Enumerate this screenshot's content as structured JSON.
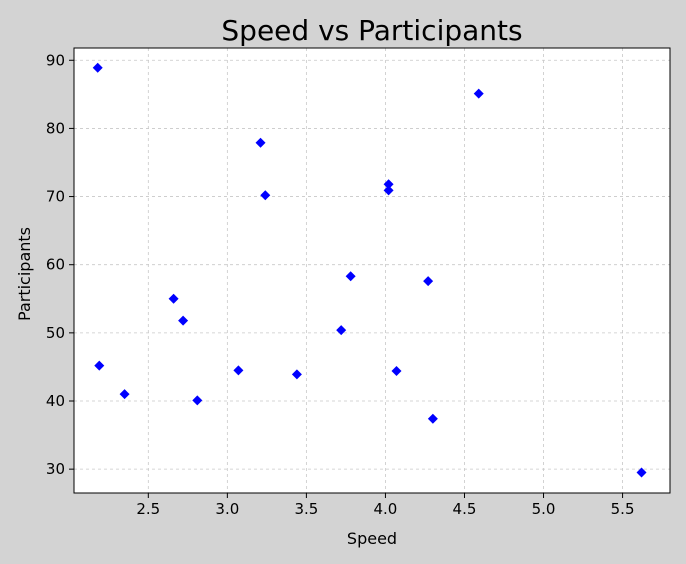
{
  "chart_data": {
    "type": "scatter",
    "title": "Speed vs Participants",
    "xlabel": "Speed",
    "ylabel": "Participants",
    "xlim": [
      2.03,
      5.8
    ],
    "ylim": [
      26.5,
      91.8
    ],
    "xticks": [
      2.5,
      3.0,
      3.5,
      4.0,
      4.5,
      5.0,
      5.5
    ],
    "xtick_labels": [
      "2.5",
      "3.0",
      "3.5",
      "4.0",
      "4.5",
      "5.0",
      "5.5"
    ],
    "yticks": [
      30,
      40,
      50,
      60,
      70,
      80,
      90
    ],
    "ytick_labels": [
      "30",
      "40",
      "50",
      "60",
      "70",
      "80",
      "90"
    ],
    "grid": true,
    "marker": "diamond",
    "color": "#0000ff",
    "series": [
      {
        "points": [
          {
            "x": 2.18,
            "y": 88.9
          },
          {
            "x": 2.19,
            "y": 45.2
          },
          {
            "x": 2.35,
            "y": 41.0
          },
          {
            "x": 2.66,
            "y": 55.0
          },
          {
            "x": 2.72,
            "y": 51.8
          },
          {
            "x": 2.81,
            "y": 40.1
          },
          {
            "x": 3.07,
            "y": 44.5
          },
          {
            "x": 3.21,
            "y": 77.9
          },
          {
            "x": 3.24,
            "y": 70.2
          },
          {
            "x": 3.44,
            "y": 43.9
          },
          {
            "x": 3.72,
            "y": 50.4
          },
          {
            "x": 3.78,
            "y": 58.3
          },
          {
            "x": 4.02,
            "y": 71.8
          },
          {
            "x": 4.02,
            "y": 70.9
          },
          {
            "x": 4.07,
            "y": 44.4
          },
          {
            "x": 4.27,
            "y": 57.6
          },
          {
            "x": 4.3,
            "y": 37.4
          },
          {
            "x": 4.59,
            "y": 85.1
          },
          {
            "x": 5.62,
            "y": 29.5
          }
        ]
      }
    ]
  }
}
